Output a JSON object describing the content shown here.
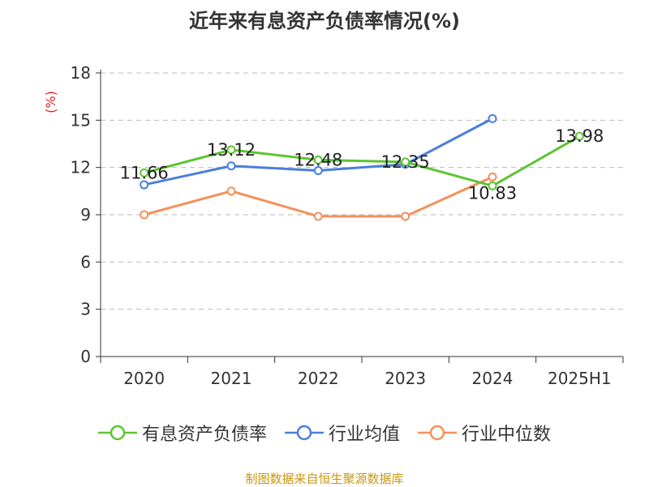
{
  "title": "近年来有息资产负债率情况(%)",
  "source": "制图数据来自恒生聚源数据库",
  "chart_data": {
    "type": "line",
    "title": "近年来有息资产负债率情况(%)",
    "xlabel": "",
    "ylabel": "(%)",
    "categories": [
      "2020",
      "2021",
      "2022",
      "2023",
      "2024",
      "2025H1"
    ],
    "ylim": [
      0,
      18
    ],
    "yticks": [
      0,
      3,
      6,
      9,
      12,
      15,
      18
    ],
    "grid": true,
    "legend_position": "bottom",
    "series": [
      {
        "name": "有息资产负债率",
        "color": "#5cc431",
        "values": [
          11.66,
          13.12,
          12.48,
          12.35,
          10.83,
          13.98
        ],
        "labels": [
          "11.66",
          "13.12",
          "12.48",
          "12.35",
          "10.83",
          "13.98"
        ]
      },
      {
        "name": "行业均值",
        "color": "#4a7fdb",
        "values": [
          10.9,
          12.1,
          11.8,
          12.2,
          15.1,
          null
        ]
      },
      {
        "name": "行业中位数",
        "color": "#f5905a",
        "values": [
          9.0,
          10.5,
          8.9,
          8.9,
          11.4,
          null
        ]
      }
    ]
  }
}
